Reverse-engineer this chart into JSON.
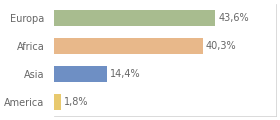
{
  "categories": [
    "Europa",
    "Africa",
    "Asia",
    "America"
  ],
  "values": [
    43.6,
    40.3,
    14.4,
    1.8
  ],
  "labels": [
    "43,6%",
    "40,3%",
    "14,4%",
    "1,8%"
  ],
  "bar_colors": [
    "#a8bc8f",
    "#e8b88a",
    "#6e8fc4",
    "#e8c96e"
  ],
  "background_color": "#ffffff",
  "xlim": [
    0,
    60
  ],
  "bar_height": 0.55,
  "label_fontsize": 7,
  "category_fontsize": 7,
  "label_color": "#666666",
  "tick_color": "#666666",
  "spine_color": "#cccccc"
}
